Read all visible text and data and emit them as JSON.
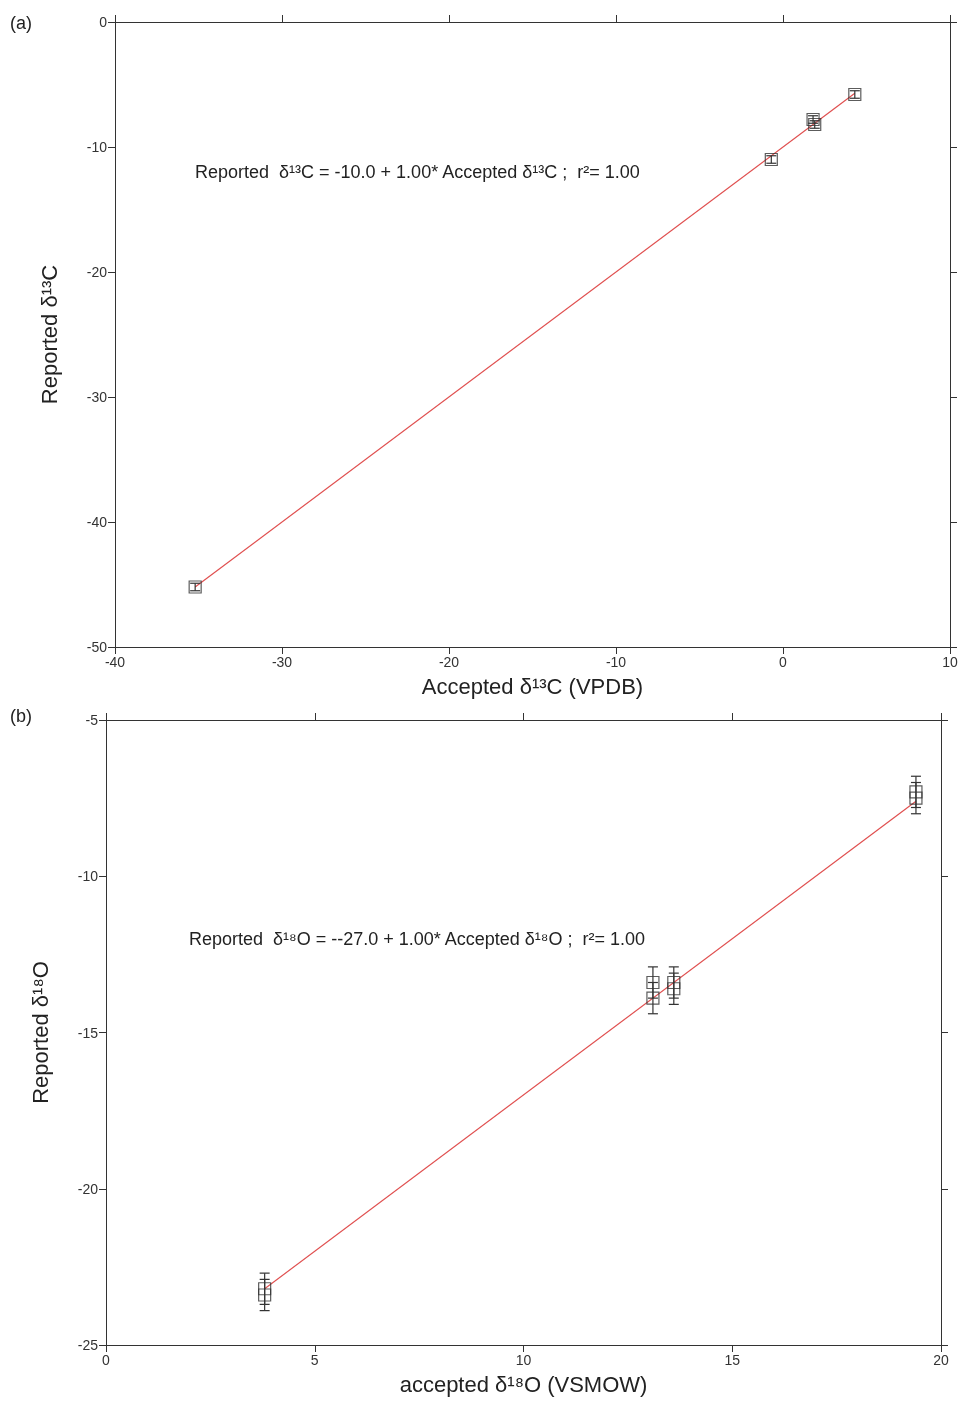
{
  "chart_data": [
    {
      "type": "scatter",
      "title": "(a)",
      "xlabel": "Accepted δ¹³C (VPDB)",
      "ylabel": "Reported δ¹³C",
      "xlim": [
        -40,
        10
      ],
      "ylim": [
        -50,
        0
      ],
      "xticks": [
        -40,
        -30,
        -20,
        -10,
        0,
        10
      ],
      "yticks": [
        -50,
        -40,
        -30,
        -20,
        -10,
        0
      ],
      "annotations": [
        "Reported  δ¹³C = -10.0 + 1.00* Accepted δ¹³C ;  r²= 1.00"
      ],
      "series": [
        {
          "marker": "square",
          "color": "#333333",
          "x": [
            -35.2,
            -0.7,
            1.8,
            1.9,
            4.3
          ],
          "values": [
            -45.2,
            -11.0,
            -7.8,
            -8.2,
            -5.8
          ],
          "errors": [
            0.3,
            0.3,
            0.3,
            0.3,
            0.3
          ]
        },
        {
          "type": "line",
          "marker": "none",
          "color": "#e05050",
          "x": [
            -35.2,
            4.3
          ],
          "values": [
            -45.2,
            -5.7
          ]
        }
      ]
    },
    {
      "type": "scatter",
      "title": "(b)",
      "xlabel": "accepted δ¹⁸O (VSMOW)",
      "ylabel": "Reported δ¹⁸O",
      "xlim": [
        0,
        20
      ],
      "ylim": [
        -25,
        -5
      ],
      "xticks": [
        0,
        5,
        10,
        15,
        20
      ],
      "yticks": [
        -25,
        -20,
        -15,
        -10,
        -5
      ],
      "annotations": [
        "Reported  δ¹⁸O = --27.0 + 1.00* Accepted δ¹⁸O ;  r²= 1.00"
      ],
      "series": [
        {
          "marker": "square",
          "color": "#333333",
          "x": [
            3.8,
            3.8,
            13.1,
            13.1,
            13.6,
            13.6,
            19.4,
            19.4
          ],
          "values": [
            -23.2,
            -23.4,
            -13.4,
            -13.9,
            -13.4,
            -13.6,
            -7.3,
            -7.5
          ],
          "errors": [
            0.5,
            0.5,
            0.5,
            0.5,
            0.5,
            0.5,
            0.5,
            0.5
          ]
        },
        {
          "type": "line",
          "marker": "none",
          "color": "#e05050",
          "x": [
            3.8,
            19.4
          ],
          "values": [
            -23.2,
            -7.6
          ]
        }
      ]
    }
  ]
}
